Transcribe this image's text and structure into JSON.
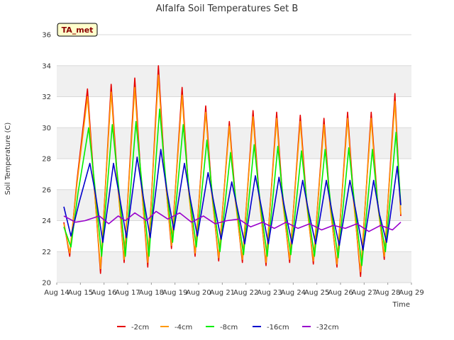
{
  "chart_data": {
    "type": "line",
    "title": "Alfalfa Soil Temperatures Set B",
    "xlabel": "Time",
    "ylabel": "Soil Temperature (C)",
    "ylim": [
      20,
      36
    ],
    "xlim": [
      "Aug 14",
      "Aug 29"
    ],
    "x_ticks": [
      "Aug 14",
      "Aug 15",
      "Aug 16",
      "Aug 17",
      "Aug 18",
      "Aug 19",
      "Aug 20",
      "Aug 21",
      "Aug 22",
      "Aug 23",
      "Aug 24",
      "Aug 25",
      "Aug 26",
      "Aug 27",
      "Aug 28",
      "Aug 29"
    ],
    "y_ticks": [
      20,
      22,
      24,
      26,
      28,
      30,
      32,
      34,
      36
    ],
    "grid": true,
    "background_bands": true,
    "legend_position": "bottom",
    "annotation": "TA_met",
    "series": [
      {
        "name": "-2cm",
        "color": "#e60000",
        "days": [
          14.3,
          14.55,
          14.85,
          15.3,
          15.55,
          15.85,
          16.3,
          16.55,
          16.85,
          17.3,
          17.55,
          17.85,
          18.3,
          18.55,
          18.85,
          19.3,
          19.55,
          19.85,
          20.3,
          20.55,
          20.85,
          21.3,
          21.55,
          21.85,
          22.3,
          22.55,
          22.85,
          23.3,
          23.55,
          23.85,
          24.3,
          24.55,
          24.85,
          25.3,
          25.55,
          25.85,
          26.3,
          26.55,
          26.85,
          27.3,
          27.55,
          27.85,
          28.3,
          28.55
        ],
        "temps": [
          23.9,
          21.7,
          26.5,
          32.5,
          27.0,
          20.6,
          32.8,
          27.0,
          21.3,
          33.2,
          27.0,
          21.0,
          34.0,
          27.5,
          22.2,
          32.6,
          26.5,
          21.7,
          31.4,
          26.0,
          21.4,
          30.4,
          25.5,
          21.3,
          31.1,
          25.8,
          21.1,
          31.0,
          25.5,
          21.3,
          30.8,
          25.5,
          21.2,
          30.6,
          25.2,
          21.0,
          31.0,
          25.5,
          20.4,
          31.0,
          25.5,
          21.5,
          32.2,
          24.3
        ]
      },
      {
        "name": "-4cm",
        "color": "#ff9900",
        "days": [
          14.3,
          14.55,
          14.85,
          15.3,
          15.55,
          15.85,
          16.3,
          16.55,
          16.85,
          17.3,
          17.55,
          17.85,
          18.3,
          18.55,
          18.85,
          19.3,
          19.55,
          19.85,
          20.3,
          20.55,
          20.85,
          21.3,
          21.55,
          21.85,
          22.3,
          22.55,
          22.85,
          23.3,
          23.55,
          23.85,
          24.3,
          24.55,
          24.85,
          25.3,
          25.55,
          25.85,
          26.3,
          26.55,
          26.85,
          27.3,
          27.55,
          27.85,
          28.3,
          28.55
        ],
        "temps": [
          23.8,
          21.9,
          26.3,
          32.0,
          26.8,
          20.9,
          32.3,
          26.8,
          21.5,
          32.6,
          26.8,
          21.3,
          33.4,
          27.3,
          22.4,
          32.1,
          26.3,
          21.9,
          31.0,
          25.8,
          21.6,
          30.1,
          25.3,
          21.5,
          30.7,
          25.6,
          21.3,
          30.6,
          25.3,
          21.5,
          30.4,
          25.3,
          21.4,
          30.2,
          25.0,
          21.2,
          30.6,
          25.3,
          20.7,
          30.6,
          25.3,
          21.7,
          31.7,
          24.4
        ]
      },
      {
        "name": "-8cm",
        "color": "#00ee00",
        "days": [
          14.3,
          14.6,
          14.9,
          15.35,
          15.6,
          15.9,
          16.35,
          16.6,
          16.9,
          17.35,
          17.6,
          17.9,
          18.35,
          18.6,
          18.9,
          19.35,
          19.6,
          19.9,
          20.35,
          20.6,
          20.9,
          21.35,
          21.6,
          21.9,
          22.35,
          22.6,
          22.9,
          23.35,
          23.6,
          23.9,
          24.35,
          24.6,
          24.9,
          25.35,
          25.6,
          25.9,
          26.35,
          26.6,
          26.9,
          27.35,
          27.6,
          27.9,
          28.35,
          28.55
        ],
        "temps": [
          23.6,
          22.3,
          25.8,
          30.0,
          26.4,
          21.7,
          30.2,
          26.4,
          21.7,
          30.4,
          26.4,
          21.7,
          31.2,
          26.8,
          22.6,
          30.2,
          25.8,
          22.3,
          29.2,
          25.4,
          22.0,
          28.4,
          25.0,
          21.8,
          28.9,
          25.2,
          21.7,
          28.8,
          25.0,
          21.8,
          28.5,
          24.9,
          21.7,
          28.6,
          24.8,
          21.6,
          28.7,
          25.0,
          21.1,
          28.6,
          24.8,
          22.0,
          29.7,
          25.0
        ]
      },
      {
        "name": "-16cm",
        "color": "#0000cc",
        "days": [
          14.3,
          14.6,
          14.95,
          15.4,
          15.65,
          15.95,
          16.4,
          16.65,
          16.95,
          17.4,
          17.65,
          17.95,
          18.4,
          18.65,
          18.95,
          19.4,
          19.65,
          19.95,
          20.4,
          20.65,
          20.95,
          21.4,
          21.65,
          21.95,
          22.4,
          22.65,
          22.95,
          23.4,
          23.65,
          23.95,
          24.4,
          24.65,
          24.95,
          25.4,
          25.65,
          25.95,
          26.4,
          26.65,
          26.95,
          27.4,
          27.65,
          27.95,
          28.4,
          28.55
        ],
        "temps": [
          24.9,
          23.0,
          25.2,
          27.7,
          25.6,
          22.6,
          27.7,
          25.6,
          22.9,
          28.1,
          25.6,
          22.9,
          28.6,
          26.0,
          23.4,
          27.7,
          25.4,
          23.0,
          27.1,
          25.1,
          22.8,
          26.5,
          24.7,
          22.5,
          26.9,
          24.9,
          22.5,
          26.8,
          24.7,
          22.5,
          26.6,
          24.6,
          22.5,
          26.6,
          24.5,
          22.4,
          26.6,
          24.6,
          22.1,
          26.6,
          24.4,
          22.6,
          27.5,
          25.0
        ]
      },
      {
        "name": "-32cm",
        "color": "#9900cc",
        "days": [
          14.3,
          14.8,
          15.2,
          15.8,
          16.2,
          16.6,
          16.9,
          17.3,
          17.8,
          18.2,
          18.7,
          19.2,
          19.7,
          20.2,
          20.7,
          21.2,
          21.7,
          22.2,
          22.7,
          23.2,
          23.7,
          24.2,
          24.7,
          25.2,
          25.7,
          26.2,
          26.7,
          27.2,
          27.7,
          28.2,
          28.55
        ],
        "temps": [
          24.3,
          23.9,
          24.0,
          24.3,
          23.8,
          24.3,
          24.0,
          24.5,
          24.0,
          24.6,
          24.1,
          24.5,
          23.9,
          24.3,
          23.8,
          24.0,
          24.1,
          23.6,
          23.9,
          23.5,
          23.9,
          23.5,
          23.8,
          23.4,
          23.7,
          23.5,
          23.8,
          23.3,
          23.7,
          23.4,
          23.9
        ]
      }
    ]
  }
}
